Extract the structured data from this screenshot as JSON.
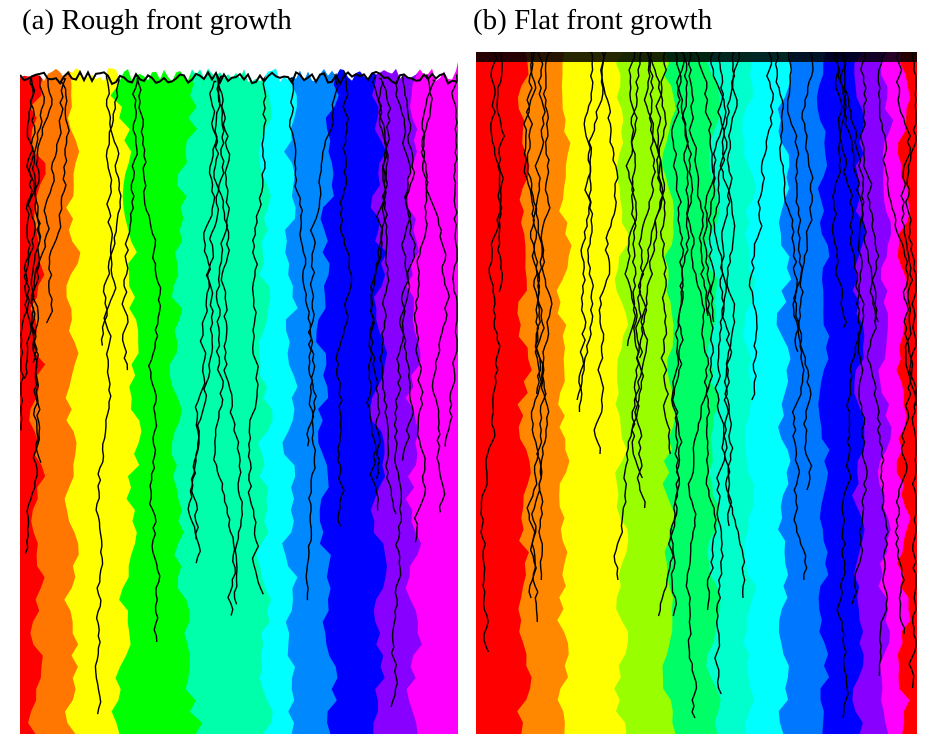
{
  "panels": [
    {
      "key": "a",
      "title": "(a) Rough front growth",
      "front": "rough",
      "color_bands": [
        {
          "color": "#ff0000"
        },
        {
          "color": "#ff7700"
        },
        {
          "color": "#ffff00"
        },
        {
          "color": "#00ff00"
        },
        {
          "color": "#00ffaa"
        },
        {
          "color": "#00ffff"
        },
        {
          "color": "#0088ff"
        },
        {
          "color": "#0000ff"
        },
        {
          "color": "#8800ff"
        },
        {
          "color": "#ff00ff"
        }
      ]
    },
    {
      "key": "b",
      "title": "(b) Flat front growth",
      "front": "flat",
      "color_bands": [
        {
          "color": "#ff0000"
        },
        {
          "color": "#ff8800"
        },
        {
          "color": "#ffff00"
        },
        {
          "color": "#99ff00"
        },
        {
          "color": "#00ff66"
        },
        {
          "color": "#00ffcc"
        },
        {
          "color": "#00ffff"
        },
        {
          "color": "#0077ff"
        },
        {
          "color": "#0000ff"
        },
        {
          "color": "#8800ff"
        },
        {
          "color": "#ff00ff"
        },
        {
          "color": "#ff0000"
        }
      ]
    }
  ],
  "boundary_color": "#000000"
}
